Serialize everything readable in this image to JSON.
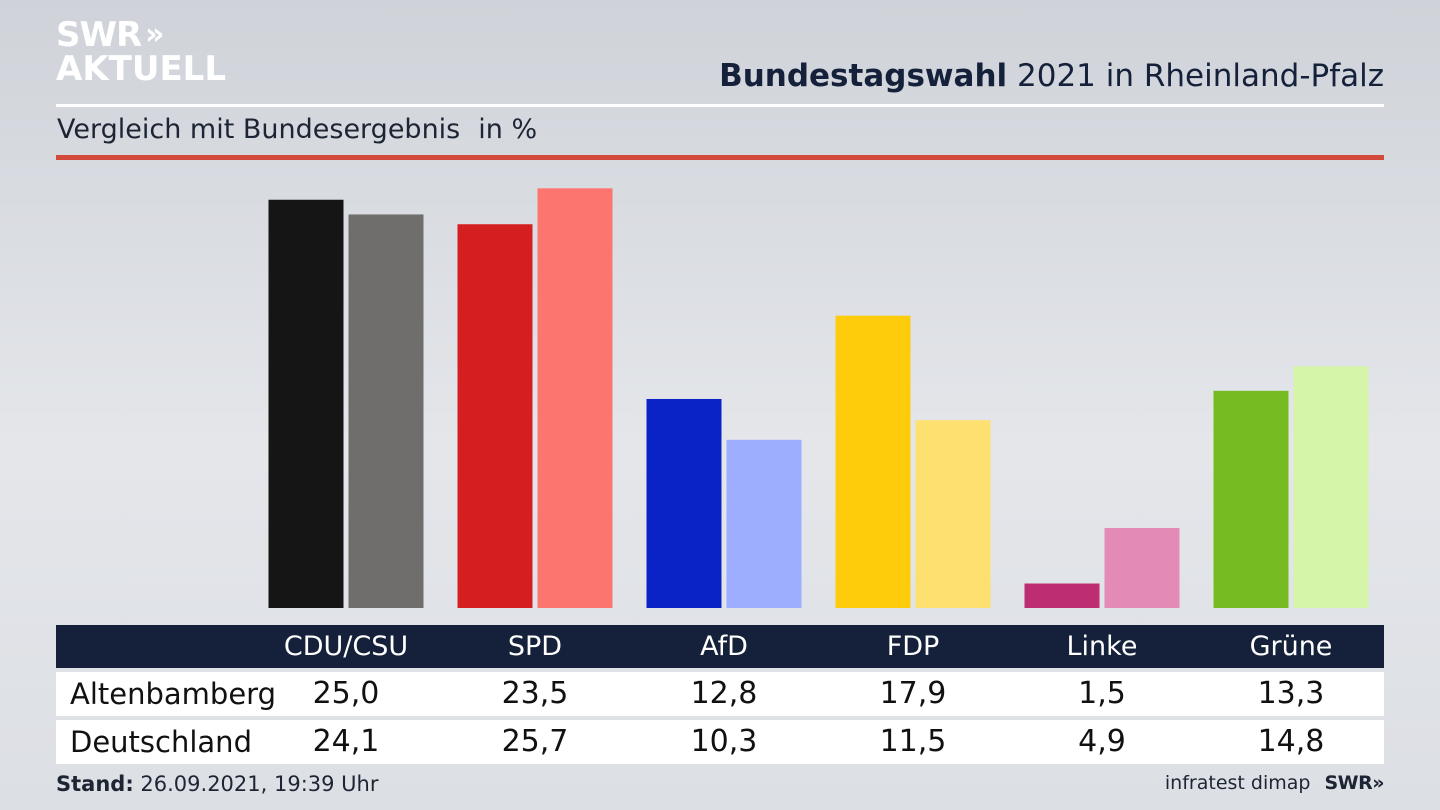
{
  "brand": {
    "line1": "SWR",
    "arrows": "»",
    "line2": "AKTUELL"
  },
  "header": {
    "title_bold": "Bundestagswahl",
    "title_rest": " 2021 in Rheinland-Pfalz"
  },
  "subtitle": {
    "text": "Vergleich mit Bundesergebnis",
    "unit": "in %"
  },
  "colors": {
    "accent_red": "#d34a3d",
    "navy": "#15213a",
    "parties": {
      "CDU/CSU": [
        "#151515",
        "#6f6e6c"
      ],
      "SPD": [
        "#d51e1f",
        "#fd756f"
      ],
      "AfD": [
        "#0a23c7",
        "#9daeff"
      ],
      "FDP": [
        "#ffcc0c",
        "#fde070"
      ],
      "Linke": [
        "#bd2d72",
        "#e38ab6"
      ],
      "Grüne": [
        "#76bb21",
        "#d5f6a8"
      ]
    }
  },
  "chart_data": {
    "type": "bar",
    "categories": [
      "CDU/CSU",
      "SPD",
      "AfD",
      "FDP",
      "Linke",
      "Grüne"
    ],
    "series": [
      {
        "name": "Altenbamberg",
        "values": [
          25.0,
          23.5,
          12.8,
          17.9,
          1.5,
          13.3
        ]
      },
      {
        "name": "Deutschland",
        "values": [
          24.1,
          25.7,
          10.3,
          11.5,
          4.9,
          14.8
        ]
      }
    ],
    "title": "Bundestagswahl 2021 in Rheinland-Pfalz",
    "subtitle": "Vergleich mit Bundesergebnis in %",
    "ylim": [
      0,
      25.7
    ],
    "grid": false,
    "legend": "table-below"
  },
  "table": {
    "headers": [
      "CDU/CSU",
      "SPD",
      "AfD",
      "FDP",
      "Linke",
      "Grüne"
    ],
    "rows": [
      {
        "label": "Altenbamberg",
        "values": [
          "25,0",
          "23,5",
          "12,8",
          "17,9",
          "1,5",
          "13,3"
        ]
      },
      {
        "label": "Deutschland",
        "values": [
          "24,1",
          "25,7",
          "10,3",
          "11,5",
          "4,9",
          "14,8"
        ]
      }
    ]
  },
  "footer": {
    "stand_label": "Stand:",
    "stand_value": " 26.09.2021, 19:39 Uhr",
    "source": "infratest dimap",
    "swr": "SWR»"
  }
}
